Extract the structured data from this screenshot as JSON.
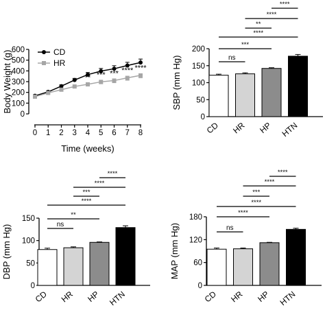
{
  "chart_data": [
    {
      "type": "line",
      "xlabel": "Time (weeks)",
      "ylabel": "Body Weight (g)",
      "xlim": [
        0,
        8
      ],
      "ylim": [
        0,
        600
      ],
      "x_ticks": [
        "0",
        "1",
        "2",
        "3",
        "4",
        "5",
        "6",
        "7",
        "8"
      ],
      "y_ticks": [
        "0",
        "100",
        "200",
        "300",
        "400",
        "500",
        "600"
      ],
      "legend_position": "top-left",
      "series": [
        {
          "name": "CD",
          "color": "#000000",
          "marker": "circle",
          "x": [
            0,
            1,
            2,
            3,
            4,
            5,
            6,
            7,
            8
          ],
          "values": [
            168,
            205,
            258,
            315,
            365,
            398,
            420,
            450,
            478
          ],
          "errors": [
            10,
            10,
            12,
            15,
            20,
            25,
            28,
            30,
            32
          ]
        },
        {
          "name": "HR",
          "color": "#a6a6a6",
          "marker": "square",
          "x": [
            0,
            1,
            2,
            3,
            4,
            5,
            6,
            7,
            8
          ],
          "values": [
            160,
            195,
            225,
            255,
            275,
            298,
            310,
            335,
            358
          ],
          "errors": [
            10,
            10,
            12,
            12,
            15,
            18,
            20,
            22,
            22
          ]
        }
      ],
      "annotations": [
        {
          "x": 4,
          "text": "**"
        },
        {
          "x": 5,
          "text": "***"
        },
        {
          "x": 6,
          "text": "***"
        },
        {
          "x": 7,
          "text": "****"
        },
        {
          "x": 8,
          "text": "****"
        }
      ]
    },
    {
      "type": "bar",
      "ylabel": "SBP (mm Hg)",
      "categories": [
        "CD",
        "HR",
        "HP",
        "HTN"
      ],
      "values": [
        122,
        126,
        142,
        178
      ],
      "errors": [
        3,
        3,
        2,
        5
      ],
      "colors": [
        "#ffffff",
        "#d4d4d4",
        "#8c8c8c",
        "#000000"
      ],
      "ylim": [
        0,
        200
      ],
      "y_ticks": [
        "0",
        "50",
        "100",
        "150",
        "200"
      ],
      "significance": [
        {
          "from": 0,
          "to": 1,
          "label": "ns"
        },
        {
          "from": 0,
          "to": 2,
          "label": "***"
        },
        {
          "from": 0,
          "to": 3,
          "label": "****"
        },
        {
          "from": 1,
          "to": 2,
          "label": "**"
        },
        {
          "from": 1,
          "to": 3,
          "label": "****"
        },
        {
          "from": 2,
          "to": 3,
          "label": "****"
        }
      ]
    },
    {
      "type": "bar",
      "ylabel": "DBP (mm Hg)",
      "categories": [
        "CD",
        "HR",
        "HP",
        "HTN"
      ],
      "values": [
        80,
        84,
        96,
        129
      ],
      "errors": [
        3,
        2,
        1,
        4
      ],
      "colors": [
        "#ffffff",
        "#d4d4d4",
        "#8c8c8c",
        "#000000"
      ],
      "ylim": [
        0,
        150
      ],
      "y_ticks": [
        "0",
        "50",
        "100",
        "150"
      ],
      "significance": [
        {
          "from": 0,
          "to": 1,
          "label": "ns"
        },
        {
          "from": 0,
          "to": 2,
          "label": "**"
        },
        {
          "from": 0,
          "to": 3,
          "label": "****"
        },
        {
          "from": 1,
          "to": 2,
          "label": "***"
        },
        {
          "from": 1,
          "to": 3,
          "label": "****"
        },
        {
          "from": 2,
          "to": 3,
          "label": "****"
        }
      ]
    },
    {
      "type": "bar",
      "ylabel": "MAP (mm Hg)",
      "categories": [
        "CD",
        "HR",
        "HP",
        "HTN"
      ],
      "values": [
        95,
        96,
        112,
        147
      ],
      "errors": [
        3,
        2,
        1,
        3
      ],
      "colors": [
        "#ffffff",
        "#d4d4d4",
        "#8c8c8c",
        "#000000"
      ],
      "ylim": [
        0,
        180
      ],
      "y_ticks": [
        "0",
        "60",
        "120",
        "180"
      ],
      "significance": [
        {
          "from": 0,
          "to": 1,
          "label": "ns"
        },
        {
          "from": 0,
          "to": 2,
          "label": "****"
        },
        {
          "from": 0,
          "to": 3,
          "label": "****"
        },
        {
          "from": 1,
          "to": 2,
          "label": "***"
        },
        {
          "from": 1,
          "to": 3,
          "label": "****"
        },
        {
          "from": 2,
          "to": 3,
          "label": "****"
        }
      ]
    }
  ]
}
